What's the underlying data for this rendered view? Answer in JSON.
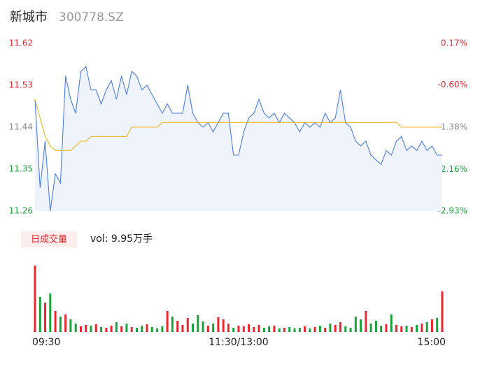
{
  "title": "新城市",
  "subtitle": "300778.SZ",
  "chart_data": {
    "type": "intraday",
    "x": [
      0,
      3,
      6,
      9,
      12,
      15,
      18,
      21,
      24,
      27,
      30,
      33,
      36,
      39,
      42,
      45,
      48,
      51,
      54,
      57,
      60,
      63,
      66,
      69,
      72,
      75,
      78,
      81,
      84,
      87,
      90,
      93,
      96,
      99,
      102,
      105,
      108,
      111,
      114,
      117,
      120,
      123,
      126,
      129,
      132,
      135,
      138,
      141,
      144,
      147,
      150,
      153,
      156,
      159,
      162,
      165,
      168,
      171,
      174,
      177,
      180,
      183,
      186,
      189,
      192,
      195,
      198,
      201,
      204,
      207,
      210,
      213,
      216,
      219,
      222,
      225,
      228,
      231,
      234,
      237,
      240
    ],
    "xlim": [
      0,
      240
    ],
    "xticks": [
      {
        "value": 0,
        "label": "09:30"
      },
      {
        "value": 120,
        "label": "11:30/13:00"
      },
      {
        "value": 240,
        "label": "15:00"
      }
    ],
    "ylim": [
      11.26,
      11.62
    ],
    "yticks": [
      11.62,
      11.53,
      11.44,
      11.35,
      11.26
    ],
    "y2lim": [
      -2.93,
      0.17
    ],
    "y2ticks": [
      {
        "value": 0.17,
        "label": "0.17%"
      },
      {
        "value": -0.6,
        "label": "-0.60%"
      },
      {
        "value": -1.38,
        "label": "-1.38%"
      },
      {
        "value": -2.16,
        "label": "-2.16%"
      },
      {
        "value": -2.93,
        "label": "-2.93%"
      }
    ],
    "up_color": "#e8262c",
    "down_color": "#1aa33a",
    "flat_color": "#888888",
    "series": [
      {
        "name": "price",
        "color": "#4a7ee6",
        "fill": "#eef3fc",
        "values": [
          11.5,
          11.31,
          11.41,
          11.26,
          11.34,
          11.32,
          11.55,
          11.5,
          11.47,
          11.56,
          11.57,
          11.52,
          11.52,
          11.49,
          11.52,
          11.54,
          11.5,
          11.55,
          11.51,
          11.56,
          11.55,
          11.52,
          11.53,
          11.51,
          11.49,
          11.47,
          11.49,
          11.47,
          11.47,
          11.47,
          11.53,
          11.47,
          11.45,
          11.44,
          11.45,
          11.43,
          11.45,
          11.47,
          11.47,
          11.38,
          11.38,
          11.43,
          11.46,
          11.47,
          11.5,
          11.47,
          11.46,
          11.47,
          11.45,
          11.47,
          11.46,
          11.45,
          11.43,
          11.45,
          11.44,
          11.45,
          11.44,
          11.47,
          11.45,
          11.46,
          11.52,
          11.45,
          11.44,
          11.41,
          11.4,
          11.41,
          11.38,
          11.37,
          11.36,
          11.39,
          11.38,
          11.41,
          11.42,
          11.39,
          11.4,
          11.39,
          11.41,
          11.39,
          11.4,
          11.38,
          11.38
        ]
      },
      {
        "name": "average",
        "color": "#f0b429",
        "values": [
          11.5,
          11.46,
          11.42,
          11.4,
          11.39,
          11.39,
          11.39,
          11.39,
          11.4,
          11.41,
          11.41,
          11.42,
          11.42,
          11.42,
          11.42,
          11.42,
          11.42,
          11.42,
          11.42,
          11.44,
          11.44,
          11.44,
          11.44,
          11.44,
          11.44,
          11.45,
          11.45,
          11.45,
          11.45,
          11.45,
          11.45,
          11.45,
          11.45,
          11.45,
          11.45,
          11.45,
          11.45,
          11.45,
          11.45,
          11.45,
          11.45,
          11.45,
          11.45,
          11.45,
          11.45,
          11.45,
          11.45,
          11.45,
          11.45,
          11.45,
          11.45,
          11.45,
          11.45,
          11.45,
          11.45,
          11.45,
          11.45,
          11.45,
          11.45,
          11.45,
          11.45,
          11.45,
          11.45,
          11.45,
          11.45,
          11.45,
          11.45,
          11.45,
          11.45,
          11.45,
          11.45,
          11.45,
          11.44,
          11.44,
          11.44,
          11.44,
          11.44,
          11.44,
          11.44,
          11.44,
          11.44
        ]
      }
    ],
    "volume": {
      "legend": "日成交量",
      "label": "vol: 9.95万手",
      "vlim": [
        0,
        100
      ],
      "values": [
        95,
        50,
        42,
        55,
        30,
        22,
        25,
        18,
        12,
        8,
        10,
        9,
        11,
        7,
        6,
        9,
        14,
        8,
        12,
        7,
        6,
        9,
        11,
        7,
        5,
        8,
        30,
        22,
        16,
        10,
        20,
        12,
        24,
        15,
        9,
        12,
        21,
        18,
        12,
        6,
        9,
        8,
        11,
        7,
        10,
        6,
        8,
        9,
        5,
        6,
        7,
        5,
        6,
        8,
        5,
        7,
        9,
        6,
        12,
        10,
        14,
        8,
        6,
        22,
        18,
        30,
        12,
        16,
        9,
        11,
        25,
        10,
        8,
        9,
        7,
        10,
        12,
        14,
        18,
        20,
        58
      ]
    }
  }
}
